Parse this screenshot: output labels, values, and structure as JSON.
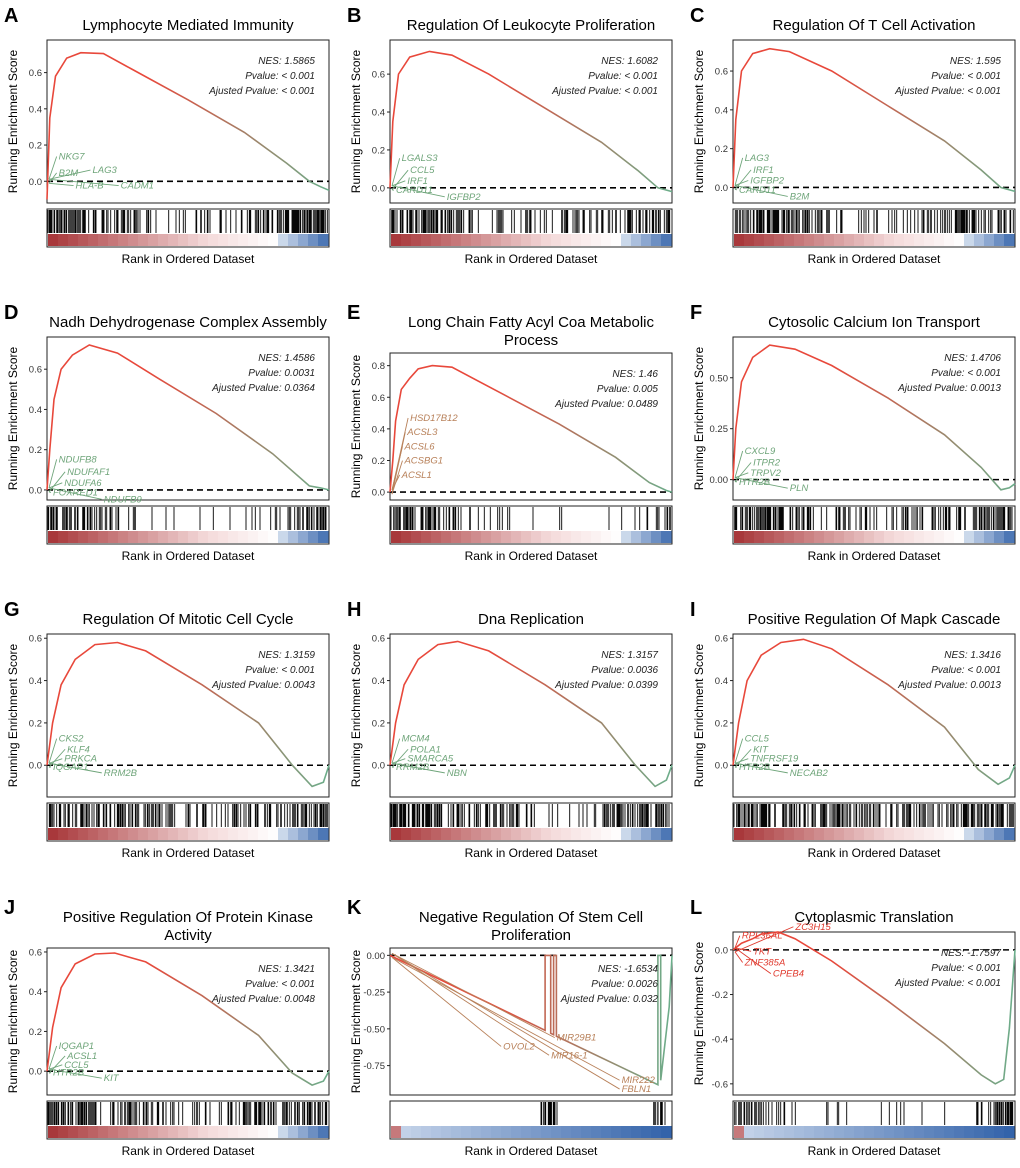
{
  "figure": {
    "x_axis_label": "Rank in Ordered Dataset",
    "y_axis_label": "Running Enrichment Score",
    "stat_labels": {
      "nes": "NES:",
      "pvalue": "Pvalue:",
      "adj": "Ajusted Pvalue:"
    }
  },
  "colors": {
    "curve_start_red": "#E8483B",
    "curve_end_green": "#6BAE8B",
    "gene_green": "#6FA57A",
    "gene_brown": "#B8815A",
    "gene_red": "#E03A2E",
    "rank_red": "#A8383B",
    "rank_blue": "#2E5FA8"
  },
  "chart_data": [
    {
      "panel": "A",
      "type": "line",
      "title": [
        "Lymphocyte Mediated Immunity"
      ],
      "ylim": [
        -0.12,
        0.78
      ],
      "yticks": [
        0.0,
        0.2,
        0.4,
        0.6
      ],
      "ytick_labels": [
        "0.0",
        "0.2",
        "0.4",
        "0.6"
      ],
      "nes": "1.5865",
      "pvalue": "< 0.001",
      "adj_pvalue": "< 0.001",
      "curve": [
        [
          0,
          -0.1
        ],
        [
          0.01,
          0.35
        ],
        [
          0.03,
          0.58
        ],
        [
          0.07,
          0.68
        ],
        [
          0.12,
          0.71
        ],
        [
          0.2,
          0.705
        ],
        [
          0.3,
          0.62
        ],
        [
          0.5,
          0.45
        ],
        [
          0.7,
          0.27
        ],
        [
          0.85,
          0.1
        ],
        [
          0.93,
          0.0
        ],
        [
          0.97,
          -0.03
        ],
        [
          1,
          -0.05
        ]
      ],
      "genes": [
        "NKG7",
        "B2M",
        "LAG3",
        "HLA-B",
        "CADM1"
      ],
      "gene_color": "green",
      "hits_density": [
        1.0,
        0.9,
        0.7,
        0.5,
        0.4,
        0.3,
        0.25,
        0.3,
        0.35,
        0.5,
        0.6,
        0.7,
        0.9,
        0.95,
        1.0
      ]
    },
    {
      "panel": "B",
      "type": "line",
      "title": [
        "Regulation Of Leukocyte Proliferation"
      ],
      "ylim": [
        -0.08,
        0.78
      ],
      "yticks": [
        0.0,
        0.2,
        0.4,
        0.6
      ],
      "ytick_labels": [
        "0.0",
        "0.2",
        "0.4",
        "0.6"
      ],
      "nes": "1.6082",
      "pvalue": "< 0.001",
      "adj_pvalue": "< 0.001",
      "curve": [
        [
          0,
          0.0
        ],
        [
          0.01,
          0.35
        ],
        [
          0.03,
          0.6
        ],
        [
          0.07,
          0.69
        ],
        [
          0.14,
          0.72
        ],
        [
          0.22,
          0.7
        ],
        [
          0.35,
          0.6
        ],
        [
          0.55,
          0.42
        ],
        [
          0.75,
          0.24
        ],
        [
          0.88,
          0.09
        ],
        [
          0.95,
          0.0
        ],
        [
          1,
          -0.02
        ]
      ],
      "genes": [
        "LGALS3",
        "CCL5",
        "IRF1",
        "CARD11",
        "IGFBP2"
      ],
      "gene_color": "green",
      "hits_density": [
        1.0,
        0.95,
        0.8,
        0.6,
        0.5,
        0.4,
        0.35,
        0.4,
        0.3,
        0.35,
        0.5,
        0.5,
        0.7,
        0.8,
        0.9
      ]
    },
    {
      "panel": "C",
      "type": "line",
      "title": [
        "Regulation Of T Cell Activation"
      ],
      "ylim": [
        -0.08,
        0.76
      ],
      "yticks": [
        0.0,
        0.2,
        0.4,
        0.6
      ],
      "ytick_labels": [
        "0.0",
        "0.2",
        "0.4",
        "0.6"
      ],
      "nes": "1.595",
      "pvalue": "< 0.001",
      "adj_pvalue": "< 0.001",
      "curve": [
        [
          0,
          0.0
        ],
        [
          0.01,
          0.35
        ],
        [
          0.03,
          0.6
        ],
        [
          0.07,
          0.69
        ],
        [
          0.13,
          0.715
        ],
        [
          0.2,
          0.7
        ],
        [
          0.35,
          0.6
        ],
        [
          0.55,
          0.42
        ],
        [
          0.75,
          0.24
        ],
        [
          0.88,
          0.09
        ],
        [
          0.95,
          0.0
        ],
        [
          1,
          -0.02
        ]
      ],
      "genes": [
        "LAG3",
        "IRF1",
        "IGFBP2",
        "CARD11",
        "B2M"
      ],
      "gene_color": "green",
      "hits_density": [
        1.0,
        0.95,
        0.8,
        0.7,
        0.6,
        0.5,
        0.4,
        0.4,
        0.35,
        0.4,
        0.5,
        0.6,
        0.7,
        0.85,
        0.95
      ]
    },
    {
      "panel": "D",
      "type": "line",
      "title": [
        "Nadh Dehydrogenase Complex Assembly"
      ],
      "ylim": [
        -0.05,
        0.76
      ],
      "yticks": [
        0.0,
        0.2,
        0.4,
        0.6
      ],
      "ytick_labels": [
        "0.0",
        "0.2",
        "0.4",
        "0.6"
      ],
      "nes": "1.4586",
      "pvalue": "0.0031",
      "adj_pvalue": "0.0364",
      "curve": [
        [
          0,
          0.0
        ],
        [
          0.01,
          0.2
        ],
        [
          0.025,
          0.45
        ],
        [
          0.05,
          0.6
        ],
        [
          0.09,
          0.67
        ],
        [
          0.15,
          0.72
        ],
        [
          0.25,
          0.68
        ],
        [
          0.4,
          0.55
        ],
        [
          0.6,
          0.38
        ],
        [
          0.8,
          0.18
        ],
        [
          0.93,
          0.02
        ],
        [
          0.97,
          0.01
        ],
        [
          1,
          0.0
        ]
      ],
      "genes": [
        "NDUFB8",
        "NDUFAF1",
        "NDUFA6",
        "FOXRED1",
        "NDUFB9"
      ],
      "gene_color": "green",
      "hits_density": [
        1.0,
        0.9,
        0.7,
        0.5,
        0.35,
        0.2,
        0.15,
        0.15,
        0.1,
        0.1,
        0.1,
        0.15,
        0.2,
        0.5,
        0.8
      ]
    },
    {
      "panel": "E",
      "type": "line",
      "title": [
        "Long Chain Fatty Acyl Coa Metabolic",
        "Process"
      ],
      "ylim": [
        -0.05,
        0.88
      ],
      "yticks": [
        0.0,
        0.2,
        0.4,
        0.6,
        0.8
      ],
      "ytick_labels": [
        "0.0",
        "0.2",
        "0.4",
        "0.6",
        "0.8"
      ],
      "nes": "1.46",
      "pvalue": "0.005",
      "adj_pvalue": "0.0489",
      "curve": [
        [
          0,
          0.0
        ],
        [
          0.01,
          0.2
        ],
        [
          0.02,
          0.45
        ],
        [
          0.04,
          0.65
        ],
        [
          0.07,
          0.72
        ],
        [
          0.1,
          0.78
        ],
        [
          0.15,
          0.8
        ],
        [
          0.22,
          0.79
        ],
        [
          0.4,
          0.62
        ],
        [
          0.6,
          0.43
        ],
        [
          0.8,
          0.22
        ],
        [
          0.92,
          0.06
        ],
        [
          0.98,
          0.01
        ],
        [
          1,
          0.0
        ]
      ],
      "genes": [
        "HSD17B12",
        "ACSL3",
        "ACSL6",
        "ACSBG1",
        "ACSL1"
      ],
      "gene_color": "brown",
      "hits_density": [
        1.0,
        0.8,
        0.6,
        0.4,
        0.25,
        0.15,
        0.1,
        0.1,
        0.05,
        0.05,
        0.05,
        0.05,
        0.05,
        0.2,
        0.5
      ]
    },
    {
      "panel": "F",
      "type": "line",
      "title": [
        "Cytosolic Calcium Ion Transport"
      ],
      "ylim": [
        -0.1,
        0.7
      ],
      "yticks": [
        0.0,
        0.25,
        0.5
      ],
      "ytick_labels": [
        "0.00",
        "0.25",
        "0.50"
      ],
      "nes": "1.4706",
      "pvalue": "< 0.001",
      "adj_pvalue": "0.0013",
      "curve": [
        [
          0,
          0.0
        ],
        [
          0.01,
          0.25
        ],
        [
          0.03,
          0.48
        ],
        [
          0.07,
          0.6
        ],
        [
          0.13,
          0.66
        ],
        [
          0.22,
          0.64
        ],
        [
          0.35,
          0.56
        ],
        [
          0.55,
          0.4
        ],
        [
          0.75,
          0.22
        ],
        [
          0.88,
          0.06
        ],
        [
          0.95,
          -0.05
        ],
        [
          0.98,
          -0.04
        ],
        [
          1,
          -0.02
        ]
      ],
      "genes": [
        "CXCL9",
        "ITPR2",
        "TRPV2",
        "HTR2B",
        "PLN"
      ],
      "gene_color": "green",
      "hits_density": [
        1.0,
        0.9,
        0.8,
        0.6,
        0.5,
        0.45,
        0.4,
        0.35,
        0.35,
        0.4,
        0.5,
        0.55,
        0.7,
        0.85,
        0.95
      ]
    },
    {
      "panel": "G",
      "type": "line",
      "title": [
        "Regulation Of Mitotic Cell Cycle"
      ],
      "ylim": [
        -0.15,
        0.62
      ],
      "yticks": [
        0.0,
        0.2,
        0.4,
        0.6
      ],
      "ytick_labels": [
        "0.0",
        "0.2",
        "0.4",
        "0.6"
      ],
      "nes": "1.3159",
      "pvalue": "< 0.001",
      "adj_pvalue": "0.0043",
      "curve": [
        [
          0,
          0.0
        ],
        [
          0.02,
          0.2
        ],
        [
          0.05,
          0.38
        ],
        [
          0.1,
          0.5
        ],
        [
          0.17,
          0.57
        ],
        [
          0.25,
          0.58
        ],
        [
          0.35,
          0.54
        ],
        [
          0.55,
          0.38
        ],
        [
          0.75,
          0.2
        ],
        [
          0.87,
          0.0
        ],
        [
          0.94,
          -0.1
        ],
        [
          0.98,
          -0.08
        ],
        [
          1,
          0.0
        ]
      ],
      "genes": [
        "CKS2",
        "KLF4",
        "PRKCA",
        "IQGAP1",
        "RRM2B"
      ],
      "gene_color": "green",
      "hits_density": [
        1.0,
        0.95,
        0.85,
        0.75,
        0.65,
        0.55,
        0.5,
        0.45,
        0.45,
        0.5,
        0.55,
        0.65,
        0.75,
        0.85,
        0.95
      ]
    },
    {
      "panel": "H",
      "type": "line",
      "title": [
        "Dna Replication"
      ],
      "ylim": [
        -0.15,
        0.62
      ],
      "yticks": [
        0.0,
        0.2,
        0.4,
        0.6
      ],
      "ytick_labels": [
        "0.0",
        "0.2",
        "0.4",
        "0.6"
      ],
      "nes": "1.3157",
      "pvalue": "0.0036",
      "adj_pvalue": "0.0399",
      "curve": [
        [
          0,
          0.0
        ],
        [
          0.02,
          0.2
        ],
        [
          0.05,
          0.38
        ],
        [
          0.1,
          0.5
        ],
        [
          0.17,
          0.57
        ],
        [
          0.24,
          0.585
        ],
        [
          0.35,
          0.54
        ],
        [
          0.55,
          0.38
        ],
        [
          0.75,
          0.2
        ],
        [
          0.87,
          0.0
        ],
        [
          0.94,
          -0.1
        ],
        [
          0.98,
          -0.07
        ],
        [
          1,
          0.0
        ]
      ],
      "genes": [
        "MCM4",
        "POLA1",
        "SMARCA5",
        "RRM2B",
        "NBN"
      ],
      "gene_color": "green",
      "hits_density": [
        1.0,
        0.95,
        0.85,
        0.7,
        0.55,
        0.45,
        0.35,
        0.25,
        0.15,
        0.1,
        0.2,
        0.45,
        0.7,
        0.85,
        0.95
      ]
    },
    {
      "panel": "I",
      "type": "line",
      "title": [
        "Positive Regulation Of Mapk Cascade"
      ],
      "ylim": [
        -0.15,
        0.62
      ],
      "yticks": [
        0.0,
        0.2,
        0.4,
        0.6
      ],
      "ytick_labels": [
        "0.0",
        "0.2",
        "0.4",
        "0.6"
      ],
      "nes": "1.3416",
      "pvalue": "< 0.001",
      "adj_pvalue": "0.0013",
      "curve": [
        [
          0,
          0.0
        ],
        [
          0.02,
          0.2
        ],
        [
          0.05,
          0.4
        ],
        [
          0.1,
          0.52
        ],
        [
          0.17,
          0.58
        ],
        [
          0.25,
          0.595
        ],
        [
          0.35,
          0.55
        ],
        [
          0.55,
          0.38
        ],
        [
          0.75,
          0.18
        ],
        [
          0.87,
          -0.02
        ],
        [
          0.94,
          -0.09
        ],
        [
          0.98,
          -0.06
        ],
        [
          1,
          0.0
        ]
      ],
      "genes": [
        "CCL5",
        "KIT",
        "TNFRSF19",
        "HTR2B",
        "NECAB2"
      ],
      "gene_color": "green",
      "hits_density": [
        1.0,
        0.95,
        0.85,
        0.75,
        0.65,
        0.55,
        0.5,
        0.45,
        0.45,
        0.5,
        0.55,
        0.65,
        0.8,
        0.9,
        0.95
      ]
    },
    {
      "panel": "J",
      "type": "line",
      "title": [
        "Positive Regulation Of Protein Kinase",
        "Activity"
      ],
      "ylim": [
        -0.12,
        0.62
      ],
      "yticks": [
        0.0,
        0.2,
        0.4,
        0.6
      ],
      "ytick_labels": [
        "0.0",
        "0.2",
        "0.4",
        "0.6"
      ],
      "nes": "1.3421",
      "pvalue": "< 0.001",
      "adj_pvalue": "0.0048",
      "curve": [
        [
          0,
          0.0
        ],
        [
          0.02,
          0.22
        ],
        [
          0.05,
          0.42
        ],
        [
          0.1,
          0.54
        ],
        [
          0.17,
          0.59
        ],
        [
          0.24,
          0.595
        ],
        [
          0.35,
          0.55
        ],
        [
          0.55,
          0.38
        ],
        [
          0.75,
          0.18
        ],
        [
          0.87,
          -0.01
        ],
        [
          0.94,
          -0.07
        ],
        [
          0.98,
          -0.05
        ],
        [
          1,
          0.0
        ]
      ],
      "genes": [
        "IQGAP1",
        "ACSL1",
        "CCL5",
        "HTR2B",
        "KIT"
      ],
      "gene_color": "green",
      "hits_density": [
        1.0,
        0.95,
        0.85,
        0.7,
        0.6,
        0.5,
        0.45,
        0.4,
        0.4,
        0.45,
        0.5,
        0.6,
        0.75,
        0.85,
        0.95
      ]
    },
    {
      "panel": "K",
      "type": "line",
      "title": [
        "Negative Regulation Of Stem Cell",
        "Proliferation"
      ],
      "ylim": [
        -0.95,
        0.05
      ],
      "yticks": [
        0.0,
        -0.25,
        -0.5,
        -0.75
      ],
      "ytick_labels": [
        "0.00",
        "-0.25",
        "-0.50",
        "-0.75"
      ],
      "nes": "-1.6534",
      "pvalue": "0.0026",
      "adj_pvalue": "0.032",
      "curve": [
        [
          0,
          0.0
        ],
        [
          0.55,
          -0.51
        ],
        [
          0.55,
          0.0
        ],
        [
          0.57,
          0.0
        ],
        [
          0.57,
          -0.53
        ],
        [
          0.58,
          -0.54
        ],
        [
          0.58,
          0.0
        ],
        [
          0.59,
          0.0
        ],
        [
          0.59,
          -0.55
        ],
        [
          0.95,
          -0.88
        ],
        [
          0.95,
          0.0
        ],
        [
          0.96,
          0.0
        ],
        [
          0.96,
          -0.85
        ],
        [
          0.99,
          -0.35
        ],
        [
          1,
          0.0
        ]
      ],
      "genes": [
        "MIR29B1",
        "OVOL2",
        "MIR16-1",
        "MIR222",
        "FBLN1"
      ],
      "gene_color": "brown",
      "hits_density": [
        0.0,
        0.0,
        0.0,
        0.0,
        0.0,
        0.0,
        0.0,
        0.0,
        0.6,
        0.0,
        0.0,
        0.0,
        0.0,
        0.0,
        0.6
      ]
    },
    {
      "panel": "L",
      "type": "line",
      "title": [
        "Cytoplasmic Translation"
      ],
      "ylim": [
        -0.65,
        0.08
      ],
      "yticks": [
        0.0,
        -0.2,
        -0.4,
        -0.6
      ],
      "ytick_labels": [
        "0.0",
        "-0.2",
        "-0.4",
        "-0.6"
      ],
      "nes": "-1.7597",
      "pvalue": "< 0.001",
      "adj_pvalue": "< 0.001",
      "curve": [
        [
          0,
          0.0
        ],
        [
          0.03,
          0.03
        ],
        [
          0.07,
          0.05
        ],
        [
          0.1,
          0.07
        ],
        [
          0.16,
          0.08
        ],
        [
          0.22,
          0.05
        ],
        [
          0.35,
          -0.05
        ],
        [
          0.55,
          -0.23
        ],
        [
          0.75,
          -0.42
        ],
        [
          0.88,
          -0.56
        ],
        [
          0.93,
          -0.6
        ],
        [
          0.96,
          -0.58
        ],
        [
          0.98,
          -0.35
        ],
        [
          1,
          0.0
        ]
      ],
      "genes": [
        "RPL36AL",
        "ZC3H15",
        "TKT",
        "ZNF385A",
        "CPEB4"
      ],
      "gene_color": "red",
      "hits_density": [
        0.6,
        0.55,
        0.35,
        0.2,
        0.15,
        0.1,
        0.08,
        0.05,
        0.05,
        0.05,
        0.05,
        0.1,
        0.2,
        0.6,
        0.95
      ]
    }
  ]
}
